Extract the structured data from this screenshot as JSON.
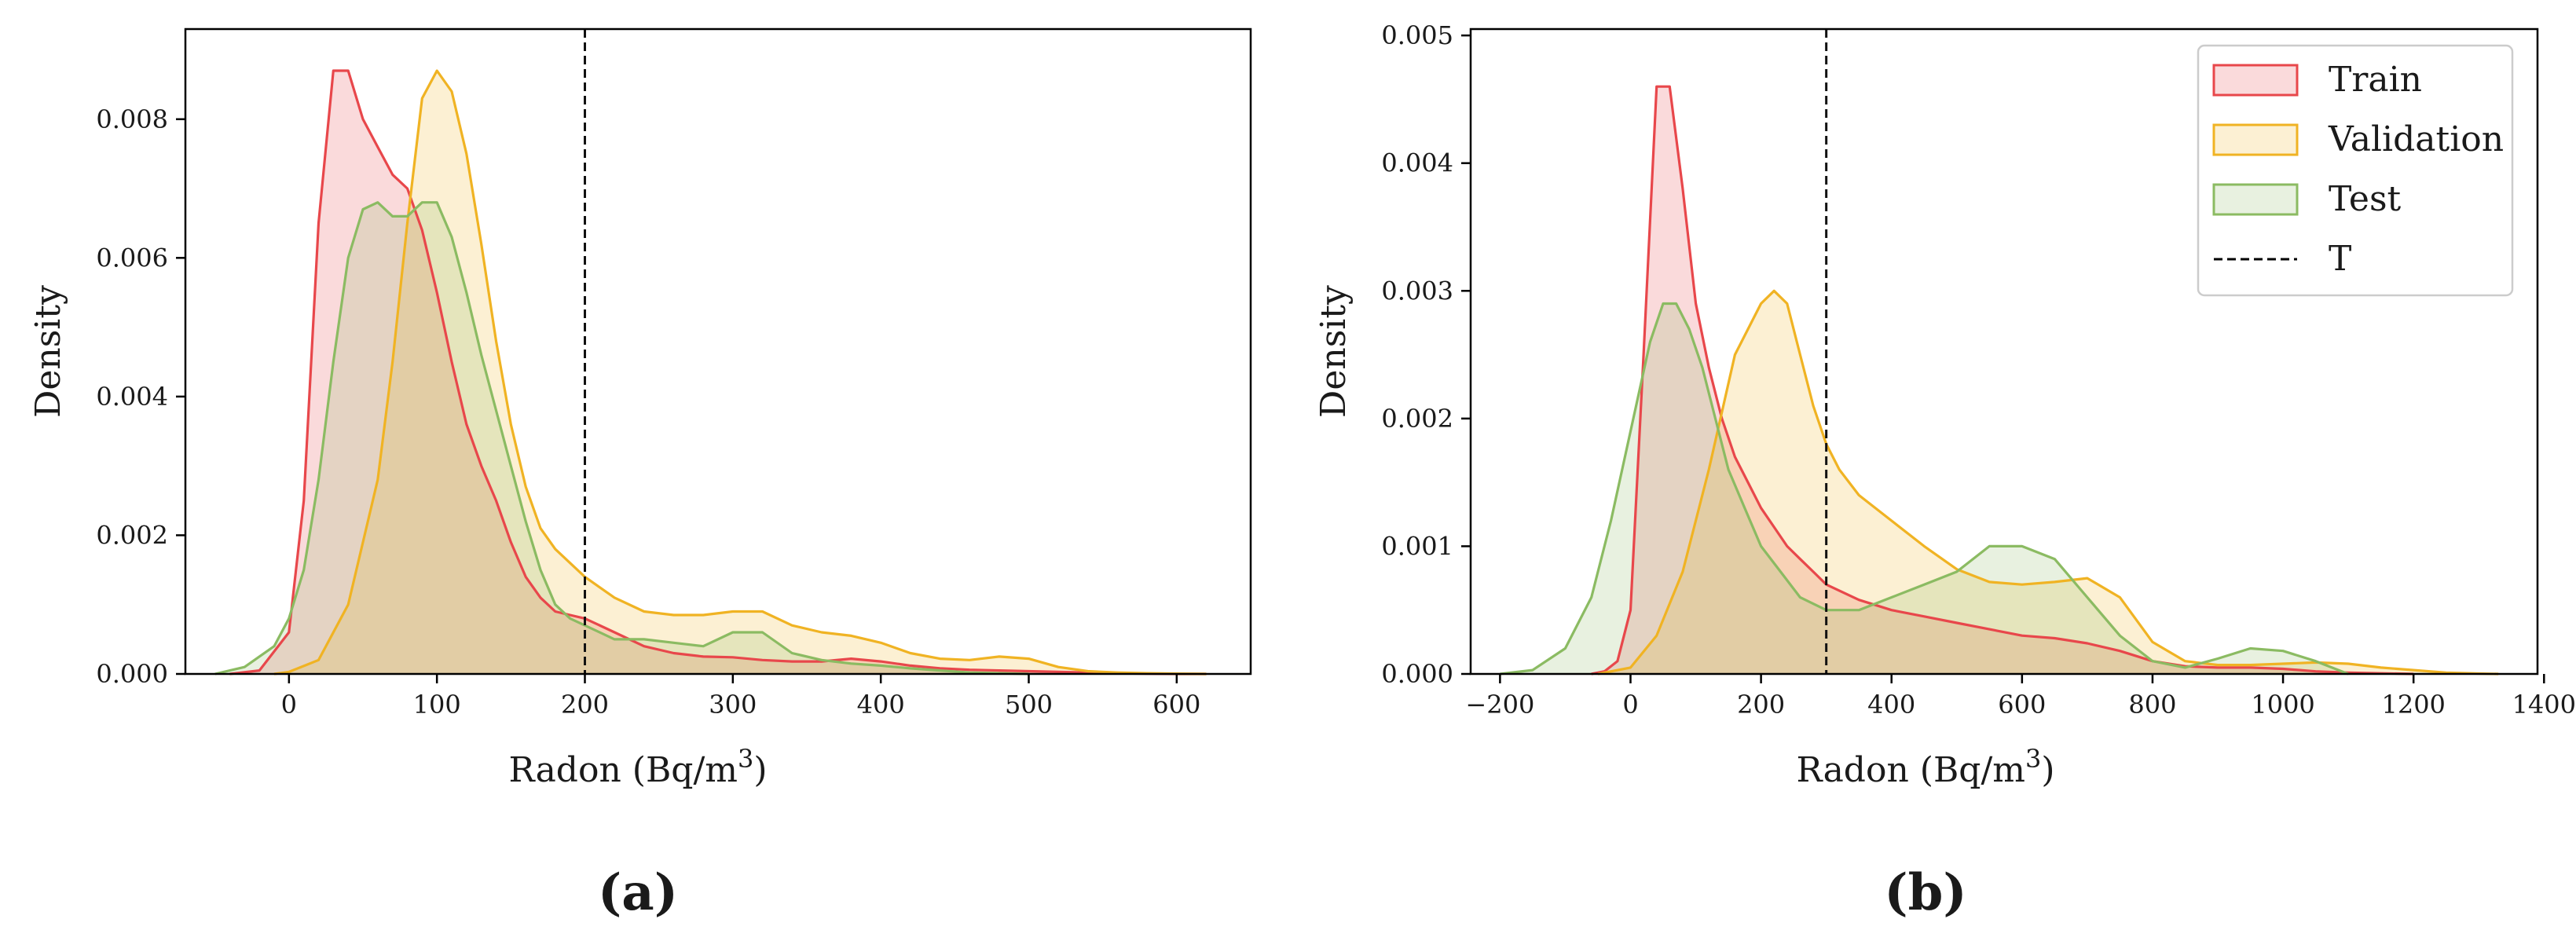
{
  "chart_data": [
    {
      "type": "area",
      "kind": "kernel density estimate",
      "subplot_label": "(a)",
      "xlabel": "Radon (Bq/m",
      "xlabel_sup": "3",
      "xlabel_close": ")",
      "ylabel": "Density",
      "xlim": [
        -70,
        650
      ],
      "ylim": [
        0,
        0.0093
      ],
      "xticks": [
        0,
        100,
        200,
        300,
        400,
        500,
        600
      ],
      "xtick_labels": [
        "0",
        "100",
        "200",
        "300",
        "400",
        "500",
        "600"
      ],
      "yticks": [
        0,
        0.002,
        0.004,
        0.006,
        0.008
      ],
      "ytick_labels": [
        "0.000",
        "0.002",
        "0.004",
        "0.006",
        "0.008"
      ],
      "vline": {
        "x": 200,
        "label": "T"
      },
      "grid": false,
      "series": [
        {
          "name": "Train",
          "color": "#e8474b",
          "x": [
            -40,
            -20,
            0,
            10,
            20,
            30,
            40,
            50,
            60,
            70,
            80,
            90,
            100,
            110,
            120,
            130,
            140,
            150,
            160,
            170,
            180,
            190,
            200,
            220,
            240,
            260,
            280,
            300,
            320,
            340,
            360,
            380,
            400,
            420,
            440,
            460,
            480,
            500,
            520,
            540,
            560,
            580,
            600,
            620
          ],
          "y": [
            0,
            5e-05,
            0.0006,
            0.0025,
            0.0065,
            0.0087,
            0.0087,
            0.008,
            0.0076,
            0.0072,
            0.007,
            0.0064,
            0.0055,
            0.0045,
            0.0036,
            0.003,
            0.0025,
            0.0019,
            0.0014,
            0.0011,
            0.0009,
            0.00085,
            0.0008,
            0.0006,
            0.0004,
            0.0003,
            0.00025,
            0.00024,
            0.0002,
            0.00018,
            0.00018,
            0.00022,
            0.00018,
            0.00012,
            8e-05,
            6e-05,
            5e-05,
            4e-05,
            3e-05,
            2e-05,
            1e-05,
            5e-06,
            0,
            0
          ]
        },
        {
          "name": "Validation",
          "color": "#f0b323",
          "x": [
            -10,
            0,
            20,
            40,
            60,
            70,
            80,
            90,
            100,
            110,
            120,
            130,
            140,
            150,
            160,
            170,
            180,
            190,
            200,
            210,
            220,
            240,
            260,
            280,
            300,
            320,
            340,
            360,
            380,
            400,
            420,
            440,
            460,
            480,
            500,
            520,
            540,
            560,
            580,
            600,
            620
          ],
          "y": [
            0,
            3e-05,
            0.0002,
            0.001,
            0.0028,
            0.0045,
            0.0065,
            0.0083,
            0.0087,
            0.0084,
            0.0075,
            0.0062,
            0.0048,
            0.0036,
            0.0027,
            0.0021,
            0.0018,
            0.0016,
            0.0014,
            0.00125,
            0.0011,
            0.0009,
            0.00085,
            0.00085,
            0.0009,
            0.0009,
            0.0007,
            0.0006,
            0.00055,
            0.00045,
            0.0003,
            0.00022,
            0.0002,
            0.00025,
            0.00022,
            0.0001,
            4e-05,
            2e-05,
            1e-05,
            5e-06,
            0
          ]
        },
        {
          "name": "Test",
          "color": "#8bbb62",
          "x": [
            -50,
            -30,
            -10,
            0,
            10,
            20,
            30,
            40,
            50,
            60,
            70,
            80,
            90,
            100,
            110,
            120,
            130,
            140,
            150,
            160,
            170,
            180,
            190,
            200,
            220,
            240,
            260,
            280,
            300,
            320,
            340,
            360,
            380,
            400,
            420,
            440,
            460,
            480,
            500
          ],
          "y": [
            0,
            0.0001,
            0.0004,
            0.0008,
            0.0015,
            0.0028,
            0.0045,
            0.006,
            0.0067,
            0.0068,
            0.0066,
            0.0066,
            0.0068,
            0.0068,
            0.0063,
            0.0055,
            0.0046,
            0.0038,
            0.003,
            0.0022,
            0.0015,
            0.001,
            0.0008,
            0.0007,
            0.0005,
            0.0005,
            0.00045,
            0.0004,
            0.0006,
            0.0006,
            0.0003,
            0.0002,
            0.00015,
            0.00012,
            8e-05,
            5e-05,
            2e-05,
            1e-05,
            0
          ]
        }
      ]
    },
    {
      "type": "area",
      "kind": "kernel density estimate",
      "subplot_label": "(b)",
      "xlabel": "Radon (Bq/m",
      "xlabel_sup": "3",
      "xlabel_close": ")",
      "ylabel": "Density",
      "xlim": [
        -245,
        1390
      ],
      "ylim": [
        0,
        0.00505
      ],
      "xticks": [
        -200,
        0,
        200,
        400,
        600,
        800,
        1000,
        1200,
        1400
      ],
      "xtick_labels": [
        "−200",
        "0",
        "200",
        "400",
        "600",
        "800",
        "1000",
        "1200",
        "1400"
      ],
      "yticks": [
        0,
        0.001,
        0.002,
        0.003,
        0.004,
        0.005
      ],
      "ytick_labels": [
        "0.000",
        "0.001",
        "0.002",
        "0.003",
        "0.004",
        "0.005"
      ],
      "vline": {
        "x": 300,
        "label": "T"
      },
      "grid": false,
      "legend_position": "top-right",
      "series": [
        {
          "name": "Train",
          "color": "#e8474b",
          "x": [
            -60,
            -40,
            -20,
            0,
            20,
            40,
            60,
            80,
            100,
            120,
            140,
            160,
            180,
            200,
            220,
            240,
            260,
            280,
            300,
            350,
            400,
            450,
            500,
            550,
            600,
            650,
            700,
            750,
            800,
            850,
            900,
            950,
            1000,
            1050,
            1100,
            1150,
            1200
          ],
          "y": [
            0,
            2e-05,
            0.0001,
            0.0005,
            0.0025,
            0.0046,
            0.0046,
            0.0038,
            0.0029,
            0.0024,
            0.002,
            0.0017,
            0.0015,
            0.0013,
            0.00115,
            0.001,
            0.0009,
            0.0008,
            0.0007,
            0.00058,
            0.0005,
            0.00045,
            0.0004,
            0.00035,
            0.0003,
            0.00028,
            0.00024,
            0.00018,
            0.0001,
            6e-05,
            5e-05,
            5e-05,
            4e-05,
            2e-05,
            1e-05,
            5e-06,
            0
          ]
        },
        {
          "name": "Validation",
          "color": "#f0b323",
          "x": [
            -50,
            0,
            40,
            80,
            120,
            160,
            200,
            220,
            240,
            260,
            280,
            300,
            320,
            350,
            400,
            450,
            500,
            550,
            600,
            650,
            700,
            750,
            800,
            850,
            900,
            950,
            1000,
            1050,
            1100,
            1150,
            1200,
            1250,
            1300,
            1330
          ],
          "y": [
            0,
            5e-05,
            0.0003,
            0.0008,
            0.0016,
            0.0025,
            0.0029,
            0.003,
            0.0029,
            0.0025,
            0.0021,
            0.0018,
            0.0016,
            0.0014,
            0.0012,
            0.001,
            0.00082,
            0.00072,
            0.0007,
            0.00072,
            0.00075,
            0.0006,
            0.00025,
            0.0001,
            7e-05,
            7e-05,
            8e-05,
            9e-05,
            8e-05,
            5e-05,
            3e-05,
            1e-05,
            3e-06,
            0
          ]
        },
        {
          "name": "Test",
          "color": "#8bbb62",
          "x": [
            -200,
            -150,
            -100,
            -60,
            -30,
            0,
            30,
            50,
            70,
            90,
            110,
            130,
            150,
            175,
            200,
            230,
            260,
            300,
            350,
            400,
            450,
            500,
            550,
            600,
            650,
            700,
            750,
            800,
            850,
            900,
            950,
            1000,
            1050,
            1100
          ],
          "y": [
            0,
            3e-05,
            0.0002,
            0.0006,
            0.0012,
            0.0019,
            0.0026,
            0.0029,
            0.0029,
            0.0027,
            0.0024,
            0.002,
            0.0016,
            0.0013,
            0.001,
            0.0008,
            0.0006,
            0.0005,
            0.0005,
            0.0006,
            0.0007,
            0.0008,
            0.001,
            0.001,
            0.0009,
            0.0006,
            0.0003,
            0.0001,
            5e-05,
            0.00012,
            0.0002,
            0.00018,
            0.0001,
            0
          ]
        }
      ]
    }
  ],
  "legend": {
    "items": [
      {
        "label": "Train",
        "kind": "patch",
        "color": "#e8474b"
      },
      {
        "label": "Validation",
        "kind": "patch",
        "color": "#f0b323"
      },
      {
        "label": "Test",
        "kind": "patch",
        "color": "#8bbb62"
      },
      {
        "label": "T",
        "kind": "dashed-line",
        "color": "#000000"
      }
    ]
  }
}
